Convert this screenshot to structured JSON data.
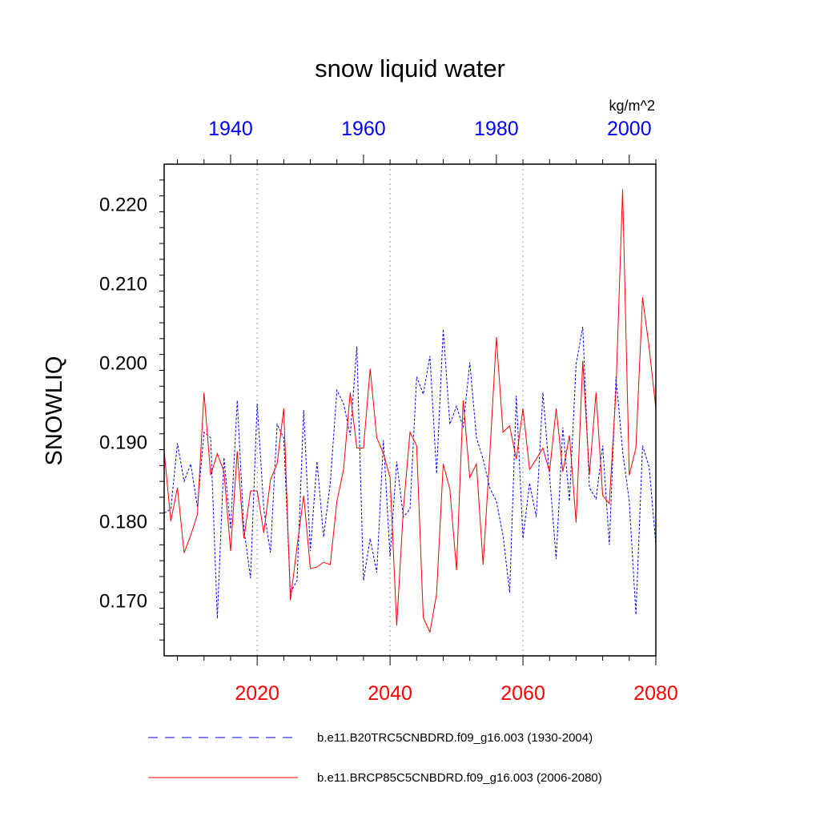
{
  "chart_data": {
    "type": "line",
    "title": "snow liquid water",
    "units": "kg/m^2",
    "ylabel": "SNOWLIQ",
    "ylim": [
      0.163,
      0.225
    ],
    "yticks": [
      "0.170",
      "0.180",
      "0.190",
      "0.200",
      "0.210",
      "0.220"
    ],
    "ytick_values": [
      0.17,
      0.18,
      0.19,
      0.2,
      0.21,
      0.22
    ],
    "x_bottom": {
      "range": [
        2006,
        2080
      ],
      "ticks": [
        2020,
        2040,
        2060,
        2080
      ],
      "labels": [
        "2020",
        "2040",
        "2060",
        "2080"
      ]
    },
    "x_top": {
      "range": [
        1930,
        2004
      ],
      "ticks": [
        1940,
        1960,
        1980,
        2000
      ],
      "labels": [
        "1940",
        "1960",
        "1980",
        "2000"
      ]
    },
    "grid": "vertical dotted at bottom-axis major ticks",
    "series": [
      {
        "name": "b.e11.B20TRC5CNBDRD.f09_g16.003 (1930-2004)",
        "color": "#0000ff",
        "style": "dashed",
        "axis": "top",
        "x_start": 1930,
        "values": [
          0.181,
          0.1815,
          0.1898,
          0.185,
          0.1872,
          0.1818,
          0.1912,
          0.1905,
          0.1677,
          0.188,
          0.179,
          0.1952,
          0.179,
          0.1728,
          0.1948,
          0.1815,
          0.176,
          0.1922,
          0.1905,
          0.171,
          0.1725,
          0.194,
          0.1762,
          0.1875,
          0.178,
          0.1848,
          0.1965,
          0.1948,
          0.1908,
          0.202,
          0.1725,
          0.1778,
          0.1735,
          0.1902,
          0.1755,
          0.1875,
          0.1805,
          0.1815,
          0.1982,
          0.196,
          0.2008,
          0.186,
          0.2042,
          0.1922,
          0.1945,
          0.1918,
          0.2,
          0.1905,
          0.1878,
          0.1842,
          0.1825,
          0.1782,
          0.171,
          0.1958,
          0.1778,
          0.1848,
          0.1805,
          0.1962,
          0.1858,
          0.1752,
          0.1918,
          0.1825,
          0.1998,
          0.2045,
          0.1842,
          0.1828,
          0.1895,
          0.177,
          0.1982,
          0.1888,
          0.1825,
          0.1682,
          0.1895,
          0.1868,
          0.177
        ]
      },
      {
        "name": "b.e11.BRCP85C5CNBDRD.f09_g16.003 (2006-2080)",
        "color": "#ff0000",
        "style": "solid",
        "axis": "bottom",
        "x_start": 2006,
        "values": [
          0.1888,
          0.18,
          0.1842,
          0.176,
          0.1782,
          0.1808,
          0.1962,
          0.1858,
          0.1885,
          0.1862,
          0.1762,
          0.1888,
          0.1778,
          0.1838,
          0.1838,
          0.1785,
          0.1852,
          0.1872,
          0.1942,
          0.17,
          0.1768,
          0.1832,
          0.174,
          0.1742,
          0.1748,
          0.1745,
          0.1825,
          0.1865,
          0.1962,
          0.1892,
          0.1892,
          0.1992,
          0.1905,
          0.1885,
          0.1855,
          0.1668,
          0.1815,
          0.1912,
          0.1895,
          0.1678,
          0.166,
          0.1708,
          0.1872,
          0.184,
          0.1738,
          0.1952,
          0.1855,
          0.1872,
          0.1745,
          0.1882,
          0.2032,
          0.1912,
          0.192,
          0.1878,
          0.1942,
          0.1865,
          0.1878,
          0.1892,
          0.1862,
          0.1942,
          0.1862,
          0.1908,
          0.1798,
          0.2002,
          0.1858,
          0.1962,
          0.1832,
          0.1822,
          0.1965,
          0.2218,
          0.1858,
          0.1892,
          0.2082,
          0.2018,
          0.1942
        ]
      }
    ]
  }
}
